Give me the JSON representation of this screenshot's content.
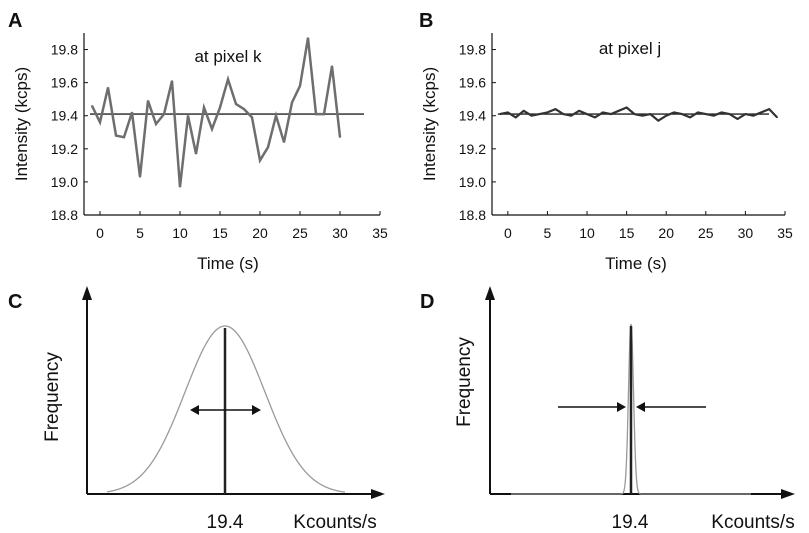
{
  "chart_data": [
    {
      "panel": "A",
      "type": "line",
      "annotation": "at pixel k",
      "xlabel": "Time (s)",
      "ylabel": "Intensity (kcps)",
      "xlim": [
        -2,
        35
      ],
      "ylim": [
        18.8,
        19.9
      ],
      "xticks": [
        0,
        5,
        10,
        15,
        20,
        25,
        30,
        35
      ],
      "yticks": [
        "18.8",
        "19.0",
        "19.2",
        "19.4",
        "19.6",
        "19.8"
      ],
      "series": [
        {
          "color": "#6e6e6e",
          "x": [
            -1,
            0,
            1,
            2,
            3,
            4,
            5,
            6,
            7,
            8,
            9,
            10,
            11,
            12,
            13,
            14,
            15,
            16,
            17,
            18,
            19,
            20,
            21,
            22,
            23,
            24,
            25,
            26,
            27,
            28,
            29,
            30
          ],
          "y": [
            19.46,
            19.36,
            19.57,
            19.28,
            19.27,
            19.42,
            19.03,
            19.49,
            19.35,
            19.41,
            19.61,
            18.97,
            19.4,
            19.17,
            19.45,
            19.32,
            19.45,
            19.62,
            19.47,
            19.44,
            19.39,
            19.13,
            19.21,
            19.4,
            19.24,
            19.48,
            19.58,
            19.87,
            19.41,
            19.41,
            19.7,
            19.27
          ]
        }
      ],
      "reference_line": {
        "y": 19.41,
        "color": "#222222"
      }
    },
    {
      "panel": "B",
      "type": "line",
      "annotation": "at pixel j",
      "xlabel": "Time (s)",
      "ylabel": "Intensity (kcps)",
      "xlim": [
        -2,
        35
      ],
      "ylim": [
        18.8,
        19.9
      ],
      "xticks": [
        0,
        5,
        10,
        15,
        20,
        25,
        30,
        35
      ],
      "yticks": [
        "18.8",
        "19.0",
        "19.2",
        "19.4",
        "19.6",
        "19.8"
      ],
      "series": [
        {
          "color": "#333333",
          "x": [
            -1,
            0,
            1,
            2,
            3,
            4,
            5,
            6,
            7,
            8,
            9,
            10,
            11,
            12,
            13,
            14,
            15,
            16,
            17,
            18,
            19,
            20,
            21,
            22,
            23,
            24,
            25,
            26,
            27,
            28,
            29,
            30,
            31,
            32,
            33,
            34
          ],
          "y": [
            19.41,
            19.42,
            19.39,
            19.43,
            19.4,
            19.41,
            19.42,
            19.44,
            19.41,
            19.4,
            19.43,
            19.41,
            19.39,
            19.42,
            19.41,
            19.43,
            19.45,
            19.41,
            19.4,
            19.41,
            19.37,
            19.4,
            19.42,
            19.41,
            19.39,
            19.42,
            19.41,
            19.4,
            19.42,
            19.41,
            19.38,
            19.41,
            19.4,
            19.42,
            19.44,
            19.39
          ]
        }
      ],
      "reference_line": {
        "y": 19.41,
        "color": "#222222"
      }
    },
    {
      "panel": "C",
      "type": "area",
      "ylabel": "Frequency",
      "xlabel": "Kcounts/s",
      "center_label": "19.4",
      "distribution": {
        "mean": 19.4,
        "sigma": 0.2,
        "x_range": [
          18.8,
          20.0
        ]
      },
      "line_color": "#9a9a9a",
      "center_line_color": "#222222",
      "width_arrows": "outward"
    },
    {
      "panel": "D",
      "type": "area",
      "ylabel": "Frequency",
      "xlabel": "Kcounts/s",
      "center_label": "19.4",
      "distribution": {
        "mean": 19.4,
        "sigma": 0.0125,
        "x_range": [
          18.8,
          20.0
        ]
      },
      "line_color": "#9a9a9a",
      "center_line_color": "#222222",
      "width_arrows": "inward"
    }
  ]
}
